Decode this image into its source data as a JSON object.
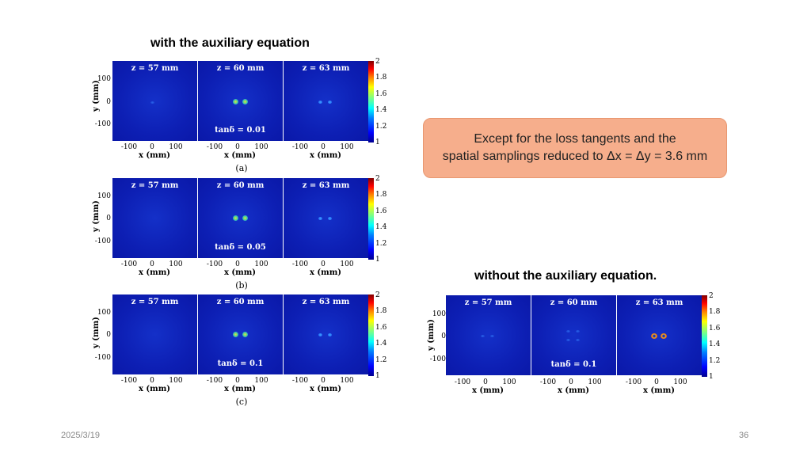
{
  "headings": {
    "with_aux": "with the auxiliary equation",
    "without_aux": "without the auxiliary equation."
  },
  "note": {
    "line1": "Except for the loss tangents and the",
    "line2": "spatial samplings reduced to Δx = Δy = 3.6 mm"
  },
  "axes": {
    "ylabel": "y (mm)",
    "xlabel": "x (mm)",
    "yticks": [
      "100",
      "0",
      "-100"
    ],
    "xticks": [
      "-100",
      "0",
      "100"
    ],
    "colorbar_ticks": [
      "2",
      "1.8",
      "1.6",
      "1.4",
      "1.2",
      "1"
    ]
  },
  "panel_titles": [
    "z = 57 mm",
    "z = 60 mm",
    "z = 63 mm"
  ],
  "figures": {
    "a": {
      "caption": "(a)",
      "tan_label": "tanδ = 0.01"
    },
    "b": {
      "caption": "(b)",
      "tan_label": "tanδ = 0.05"
    },
    "c": {
      "caption": "(c)",
      "tan_label": "tanδ = 0.1"
    },
    "d": {
      "tan_label": "tanδ = 0.1"
    }
  },
  "footer": {
    "date": "2025/3/19",
    "page": "36"
  }
}
